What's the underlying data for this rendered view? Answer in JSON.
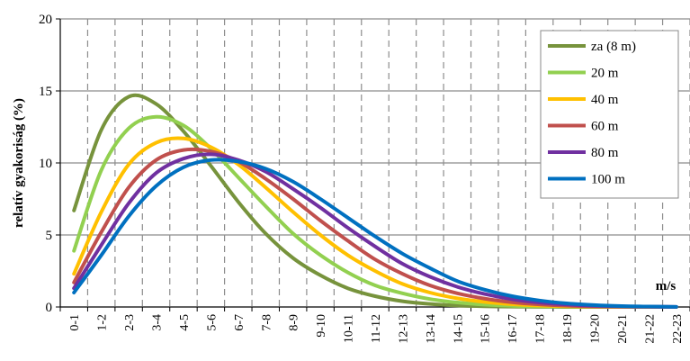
{
  "chart_data": {
    "type": "line",
    "ylabel": "relatív gyakoriság (%)",
    "xunit": "m/s",
    "ylim": [
      0,
      20
    ],
    "yticks": [
      0,
      5,
      10,
      15,
      20
    ],
    "grid": {
      "horizontal": true,
      "vertical": true,
      "vertical_style": "dashed"
    },
    "legend_position": "top-right",
    "categories": [
      "0-1",
      "1-2",
      "2-3",
      "3-4",
      "4-5",
      "5-6",
      "6-7",
      "7-8",
      "8-9",
      "9-10",
      "10-11",
      "11-12",
      "12-13",
      "13-14",
      "14-15",
      "15-16",
      "16-17",
      "17-18",
      "18-19",
      "19-20",
      "20-21",
      "21-22",
      "22-23"
    ],
    "series": [
      {
        "name": "za (8 m)",
        "color": "#77933c",
        "values": [
          6.7,
          12.3,
          14.6,
          14.1,
          12.2,
          9.8,
          7.3,
          5.1,
          3.4,
          2.2,
          1.3,
          0.75,
          0.4,
          0.21,
          0.1,
          0.05,
          0.02,
          0.01,
          0.0,
          0.0,
          0.0,
          0.0,
          0.0
        ]
      },
      {
        "name": "20 m",
        "color": "#92d050",
        "values": [
          3.9,
          9.5,
          12.4,
          13.2,
          12.6,
          11.0,
          9.0,
          7.0,
          5.1,
          3.6,
          2.4,
          1.5,
          0.95,
          0.55,
          0.31,
          0.16,
          0.08,
          0.04,
          0.02,
          0.01,
          0.0,
          0.0,
          0.0
        ]
      },
      {
        "name": "40 m",
        "color": "#ffc000",
        "values": [
          2.3,
          6.6,
          9.9,
          11.4,
          11.7,
          11.1,
          9.9,
          8.3,
          6.6,
          5.0,
          3.6,
          2.5,
          1.6,
          1.0,
          0.6,
          0.35,
          0.19,
          0.1,
          0.05,
          0.02,
          0.01,
          0.0,
          0.0
        ]
      },
      {
        "name": "60 m",
        "color": "#c0504d",
        "values": [
          1.7,
          5.2,
          8.3,
          10.2,
          10.9,
          10.8,
          10.1,
          8.9,
          7.5,
          6.0,
          4.6,
          3.3,
          2.3,
          1.5,
          0.95,
          0.58,
          0.33,
          0.18,
          0.09,
          0.04,
          0.02,
          0.01,
          0.0
        ]
      },
      {
        "name": "80 m",
        "color": "#7030a0",
        "values": [
          1.3,
          4.3,
          7.2,
          9.3,
          10.3,
          10.6,
          10.2,
          9.4,
          8.2,
          6.9,
          5.5,
          4.2,
          3.0,
          2.1,
          1.4,
          0.9,
          0.54,
          0.31,
          0.17,
          0.09,
          0.04,
          0.02,
          0.01
        ]
      },
      {
        "name": "100 m",
        "color": "#0070c0",
        "values": [
          1.0,
          3.6,
          6.3,
          8.4,
          9.7,
          10.2,
          10.1,
          9.6,
          8.7,
          7.5,
          6.2,
          4.9,
          3.7,
          2.7,
          1.8,
          1.2,
          0.75,
          0.45,
          0.25,
          0.13,
          0.06,
          0.03,
          0.01
        ]
      }
    ]
  }
}
